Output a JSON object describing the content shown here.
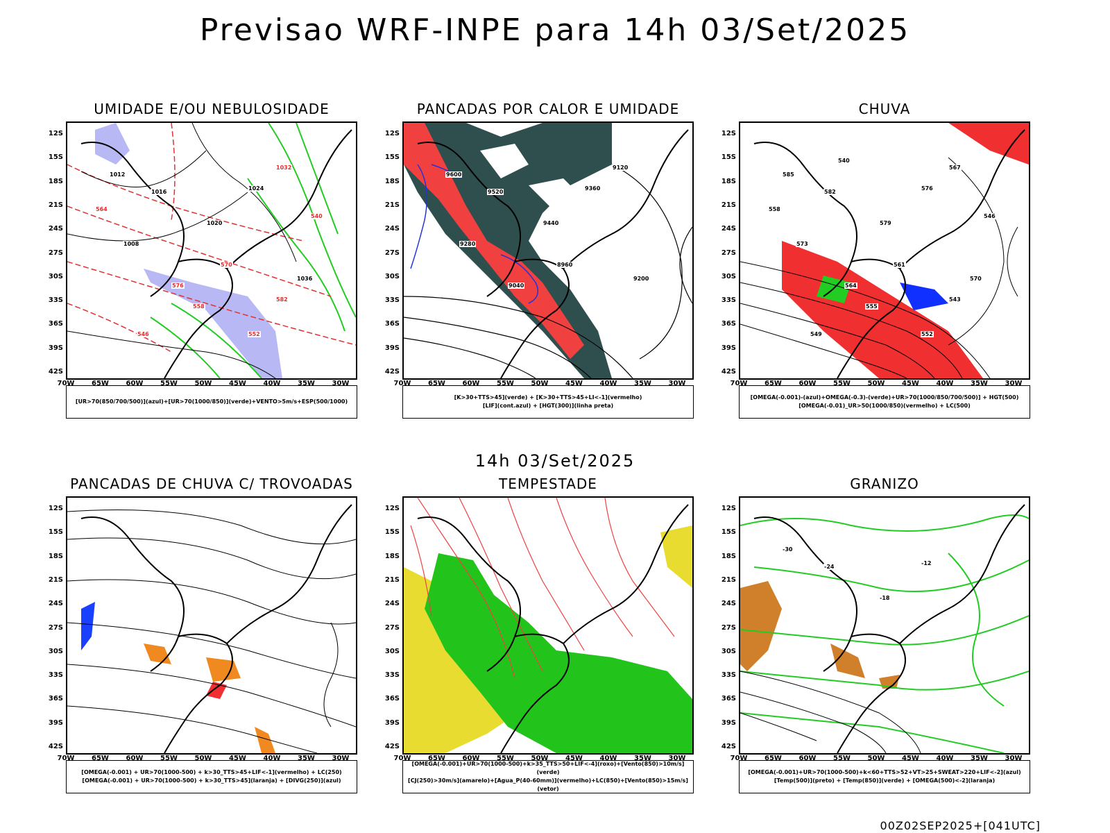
{
  "title": "Previsao WRF-INPE  para 14h 03/Set/2025",
  "mid_title": "14h 03/Set/2025",
  "footer": "00Z02SEP2025+[041UTC]",
  "lat_labels": [
    "12S",
    "15S",
    "18S",
    "21S",
    "24S",
    "27S",
    "30S",
    "33S",
    "36S",
    "39S",
    "42S"
  ],
  "lon_labels": [
    "70W",
    "65W",
    "60W",
    "55W",
    "50W",
    "45W",
    "40W",
    "35W",
    "30W"
  ],
  "panels": [
    {
      "title": "UMIDADE E/OU NEBULOSIDADE",
      "legend": [
        "[UR>70(850/700/500)](azul)+[UR>70(1000/850)](verde)+VENTO>5m/s+ESP(500/1000)"
      ],
      "contour_labels": [
        "1012",
        "1016",
        "1020",
        "1024",
        "1008",
        "1036",
        "1032",
        "576",
        "570",
        "564",
        "558",
        "552",
        "546",
        "540",
        "582"
      ],
      "layers": {
        "fill": "#b8b8f4",
        "contour_green": "#22cc22",
        "contour_red": "#e23030",
        "lines": "#000000"
      }
    },
    {
      "title": "PANCADAS POR CALOR E UMIDADE",
      "legend": [
        "[K>30+TTS>45](verde) + [K>30+TTS>45+LI<-1](vermelho)",
        "[LIF](cont.azul) + [HGT(300)](linha preta)"
      ],
      "contour_labels": [
        "9600",
        "9520",
        "9440",
        "9360",
        "9280",
        "9200",
        "9120",
        "9040",
        "8960"
      ],
      "layers": {
        "fill_dark": "#2f4f4f",
        "fill_red": "#f04040",
        "contour_blue": "#2233dd",
        "lines": "#000000"
      }
    },
    {
      "title": "CHUVA",
      "legend": [
        "[OMEGA(-0.001)-(azul)+OMEGA(-0.3)-(verde)+UR>70(1000/850/700/500)] + HGT(500)",
        "[OMEGA(-0.01)_UR>50(1000/850)(vermelho) + LC(500)"
      ],
      "contour_labels": [
        "585",
        "582",
        "579",
        "576",
        "573",
        "570",
        "567",
        "564",
        "561",
        "558",
        "555",
        "552",
        "549",
        "546",
        "543",
        "540"
      ],
      "layers": {
        "fill_red": "#f03030",
        "fill_blue": "#1030ff",
        "fill_green": "#22cc22",
        "lines": "#000000"
      }
    },
    {
      "title": "PANCADAS DE CHUVA C/ TROVOADAS",
      "legend": [
        "[OMEGA(-0.001) + UR>70(1000-500) + k>30_TTS>45+LIF<-1](vermelho) + LC(250)",
        "[OMEGA(-0.001) + UR>70(1000-500) + k>30_TTS>45](laranja) + [DIVG(250)](azul)"
      ],
      "contour_labels": [],
      "layers": {
        "fill_orange": "#f08a20",
        "fill_red": "#f03030",
        "fill_blue": "#1a40ff",
        "lines": "#000000"
      }
    },
    {
      "title": "TEMPESTADE",
      "legend": [
        "[OMEGA(-0.001)+UR>70(1000-500)+k>35_TTS>50+LIF<-4](roxo)+[Vento(850)>10m/s](verde)",
        "[CJ(250)>30m/s](amarelo)+[Agua_P(40-60mm)](vermelho)+LC(850)+[Vento(850)>15m/s](vetor)"
      ],
      "contour_labels": [],
      "layers": {
        "fill_yellow": "#e8dc30",
        "fill_green": "#22c41c",
        "contour_red": "#f04040",
        "lines": "#000000"
      }
    },
    {
      "title": "GRANIZO",
      "legend": [
        "[OMEGA(-0.001)+UR>70(1000-500)+k<60+TTS>52+VT>25+SWEAT>220+LIF<-2](azul)",
        "[Temp(500)](preto) + [Temp(850)](verde) + [OMEGA(500)<-2](laranja)"
      ],
      "contour_labels": [
        "-30",
        "-24",
        "-18",
        "-12"
      ],
      "layers": {
        "contour_green": "#22cc22",
        "fill_orange": "#d0802a",
        "lines": "#000000"
      }
    }
  ]
}
